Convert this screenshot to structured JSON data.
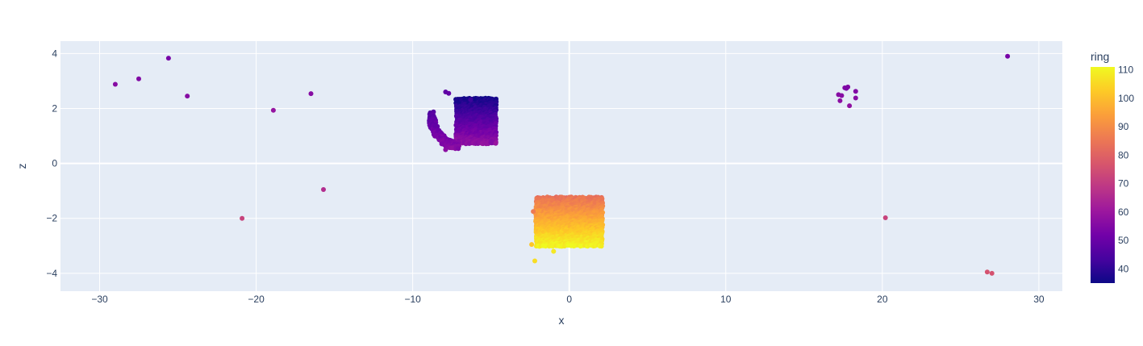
{
  "chart_data": {
    "type": "scatter",
    "title": "",
    "xlabel": "x",
    "ylabel": "z",
    "xlim": [
      -32.5,
      31.5
    ],
    "ylim": [
      -4.65,
      4.45
    ],
    "x_ticks": [
      -30,
      -20,
      -10,
      0,
      10,
      20,
      30
    ],
    "y_ticks": [
      -4,
      -2,
      0,
      2,
      4
    ],
    "x_tick_labels": [
      "−30",
      "−20",
      "−10",
      "0",
      "10",
      "20",
      "30"
    ],
    "y_tick_labels": [
      "−4",
      "−2",
      "0",
      "2",
      "4"
    ],
    "grid": true,
    "colorbar": {
      "title": "ring",
      "range": [
        35,
        111
      ],
      "ticks": [
        40,
        50,
        60,
        70,
        80,
        90,
        100,
        110
      ],
      "tick_labels": [
        "40",
        "50",
        "60",
        "70",
        "80",
        "90",
        "100",
        "110"
      ],
      "colorscale": [
        "#0d0887",
        "#46039f",
        "#7201a8",
        "#9c179e",
        "#bd3786",
        "#d8576b",
        "#ed7953",
        "#fb9f3a",
        "#fdca26",
        "#f0f921"
      ]
    },
    "clusters": [
      {
        "name": "upper-left-block",
        "x_range": [
          -7.2,
          -4.6
        ],
        "z_range": [
          0.7,
          2.35
        ],
        "ring_top": 36,
        "ring_bottom": 58
      },
      {
        "name": "upper-left-arc",
        "x_range": [
          -8.9,
          -7.0
        ],
        "z_range": [
          0.55,
          1.85
        ],
        "ring_top": 46,
        "ring_bottom": 56
      },
      {
        "name": "lower-center-block",
        "x_range": [
          -2.1,
          2.1
        ],
        "z_range": [
          -3.0,
          -1.25
        ],
        "ring_top": 84,
        "ring_bottom": 110
      }
    ],
    "points": [
      {
        "x": -29.0,
        "z": 2.88,
        "ring": 56
      },
      {
        "x": -27.5,
        "z": 3.08,
        "ring": 55
      },
      {
        "x": -25.6,
        "z": 3.83,
        "ring": 53
      },
      {
        "x": -24.4,
        "z": 2.45,
        "ring": 56
      },
      {
        "x": -18.9,
        "z": 1.93,
        "ring": 59
      },
      {
        "x": -16.5,
        "z": 2.54,
        "ring": 56
      },
      {
        "x": -15.7,
        "z": -0.95,
        "ring": 66
      },
      {
        "x": -20.9,
        "z": -2.0,
        "ring": 72
      },
      {
        "x": -7.9,
        "z": 2.6,
        "ring": 48
      },
      {
        "x": -7.7,
        "z": 2.55,
        "ring": 49
      },
      {
        "x": -6.3,
        "z": 2.32,
        "ring": 42
      },
      {
        "x": -7.9,
        "z": 0.5,
        "ring": 57
      },
      {
        "x": -2.4,
        "z": -2.95,
        "ring": 102
      },
      {
        "x": -2.2,
        "z": -3.55,
        "ring": 106
      },
      {
        "x": -1.0,
        "z": -3.2,
        "ring": 108
      },
      {
        "x": -2.3,
        "z": -1.75,
        "ring": 86
      },
      {
        "x": 17.2,
        "z": 2.5,
        "ring": 56
      },
      {
        "x": 17.4,
        "z": 2.47,
        "ring": 56
      },
      {
        "x": 17.6,
        "z": 2.75,
        "ring": 55
      },
      {
        "x": 17.8,
        "z": 2.78,
        "ring": 55
      },
      {
        "x": 17.7,
        "z": 2.73,
        "ring": 54
      },
      {
        "x": 17.3,
        "z": 2.28,
        "ring": 57
      },
      {
        "x": 18.3,
        "z": 2.62,
        "ring": 55
      },
      {
        "x": 18.3,
        "z": 2.38,
        "ring": 56
      },
      {
        "x": 17.9,
        "z": 2.1,
        "ring": 58
      },
      {
        "x": 28.0,
        "z": 3.9,
        "ring": 53
      },
      {
        "x": 20.2,
        "z": -1.98,
        "ring": 72
      },
      {
        "x": 26.7,
        "z": -3.95,
        "ring": 76
      },
      {
        "x": 27.0,
        "z": -4.0,
        "ring": 76
      }
    ]
  }
}
